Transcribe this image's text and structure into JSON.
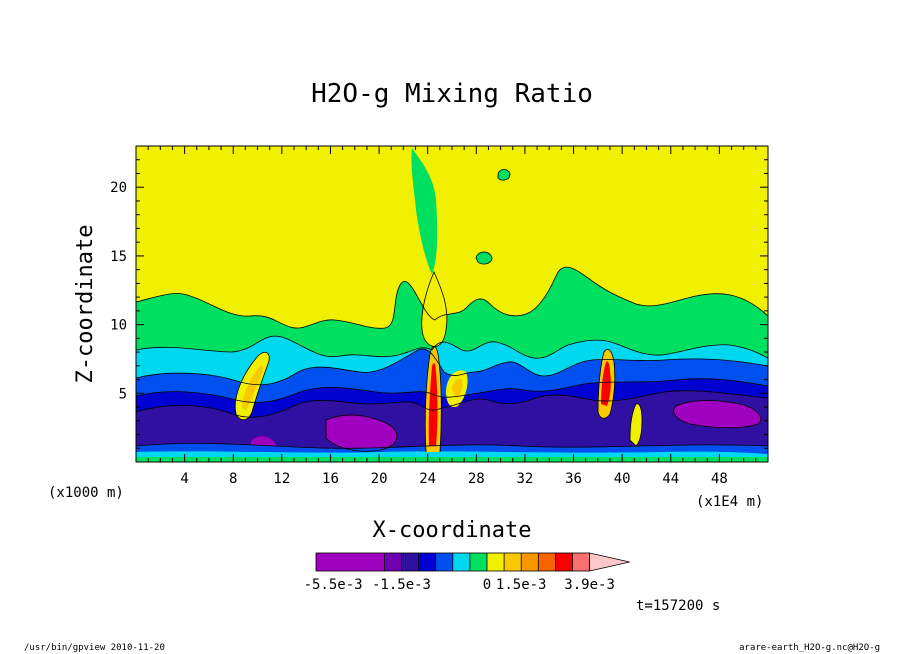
{
  "chart_data": {
    "type": "heatmap",
    "title": "H2O-g Mixing Ratio",
    "xlabel": "X-coordinate",
    "ylabel": "Z-coordinate",
    "x_unit_left": "(x1000 m)",
    "x_unit_right": "(x1E4 m)",
    "xlim": [
      0,
      52
    ],
    "ylim": [
      0,
      23
    ],
    "x_ticks": [
      4,
      8,
      12,
      16,
      20,
      24,
      28,
      32,
      36,
      40,
      44,
      48
    ],
    "y_ticks": [
      5,
      10,
      15,
      20
    ],
    "grid": false,
    "colorbar": {
      "colors": [
        "#a000c0",
        "#a000c0",
        "#a000c0",
        "#a000c0",
        "#7000b0",
        "#3010a0",
        "#0000d0",
        "#0050f0",
        "#00d8f0",
        "#00e060",
        "#f0f000",
        "#f8c800",
        "#f89600",
        "#f86400",
        "#f80000",
        "#f87070"
      ],
      "over_color": "#ffc8c8",
      "labels": [
        {
          "text": "-5.5e-3",
          "index": 0
        },
        {
          "text": "-1.5e-3",
          "index": 4
        },
        {
          "text": "0",
          "index": 9
        },
        {
          "text": "1.5e-3",
          "index": 11
        },
        {
          "text": "3.9e-3",
          "index": 15
        }
      ]
    },
    "regions": {
      "yellow": "#f0f000",
      "green": "#00e060",
      "cyan": "#00d8f0",
      "blue": "#0050f0",
      "dark_blue": "#0000d0",
      "navy": "#3010a0",
      "purple": "#a000c0",
      "orange": "#f8c800",
      "red": "#f80000"
    }
  },
  "time_label": "t=157200 s",
  "footer": {
    "left": "/usr/bin/gpview  2010-11-20",
    "right": "arare-earth_H2O-g.nc@H2O-g"
  }
}
